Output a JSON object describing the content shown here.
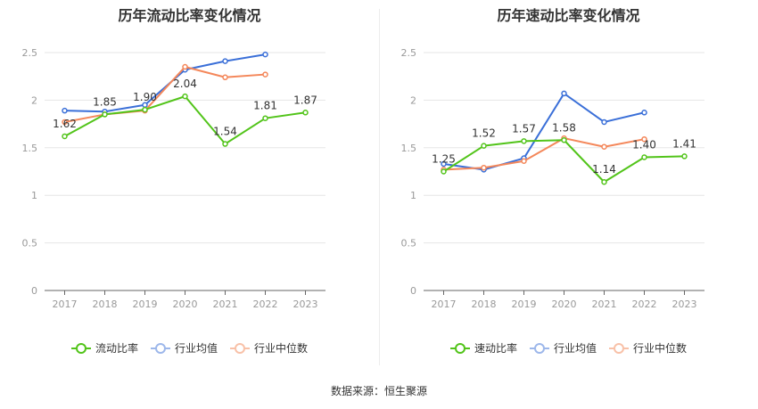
{
  "source_label": "数据来源：恒生聚源",
  "chart_data": [
    {
      "type": "line",
      "title": "历年流动比率变化情况",
      "categories": [
        "2017",
        "2018",
        "2019",
        "2020",
        "2021",
        "2022",
        "2023"
      ],
      "ylim": [
        0,
        2.5
      ],
      "yticks": [
        "0",
        "0.5",
        "1",
        "1.5",
        "2",
        "2.5"
      ],
      "grid": true,
      "legend_position": "bottom",
      "series": [
        {
          "name": "流动比率",
          "color": "#52c41a",
          "values": [
            1.62,
            1.85,
            1.9,
            2.04,
            1.54,
            1.81,
            1.87
          ],
          "labels": [
            "1.62",
            "1.85",
            "1.90",
            "2.04",
            "1.54",
            "1.81",
            "1.87"
          ]
        },
        {
          "name": "行业均值",
          "color": "#3a6fd8",
          "values": [
            1.89,
            1.88,
            1.95,
            2.32,
            2.41,
            2.48,
            null
          ]
        },
        {
          "name": "行业中位数",
          "color": "#f4875a",
          "values": [
            1.77,
            1.85,
            1.89,
            2.35,
            2.24,
            2.27,
            null
          ]
        }
      ]
    },
    {
      "type": "line",
      "title": "历年速动比率变化情况",
      "categories": [
        "2017",
        "2018",
        "2019",
        "2020",
        "2021",
        "2022",
        "2023"
      ],
      "ylim": [
        0,
        2.5
      ],
      "yticks": [
        "0",
        "0.5",
        "1",
        "1.5",
        "2",
        "2.5"
      ],
      "grid": true,
      "legend_position": "bottom",
      "series": [
        {
          "name": "速动比率",
          "color": "#52c41a",
          "values": [
            1.25,
            1.52,
            1.57,
            1.58,
            1.14,
            1.4,
            1.41
          ],
          "labels": [
            "1.25",
            "1.52",
            "1.57",
            "1.58",
            "1.14",
            "1.40",
            "1.41"
          ]
        },
        {
          "name": "行业均值",
          "color": "#3a6fd8",
          "values": [
            1.33,
            1.27,
            1.39,
            2.07,
            1.77,
            1.87,
            null
          ]
        },
        {
          "name": "行业中位数",
          "color": "#f4875a",
          "values": [
            1.27,
            1.29,
            1.36,
            1.6,
            1.51,
            1.59,
            null
          ]
        }
      ]
    }
  ]
}
